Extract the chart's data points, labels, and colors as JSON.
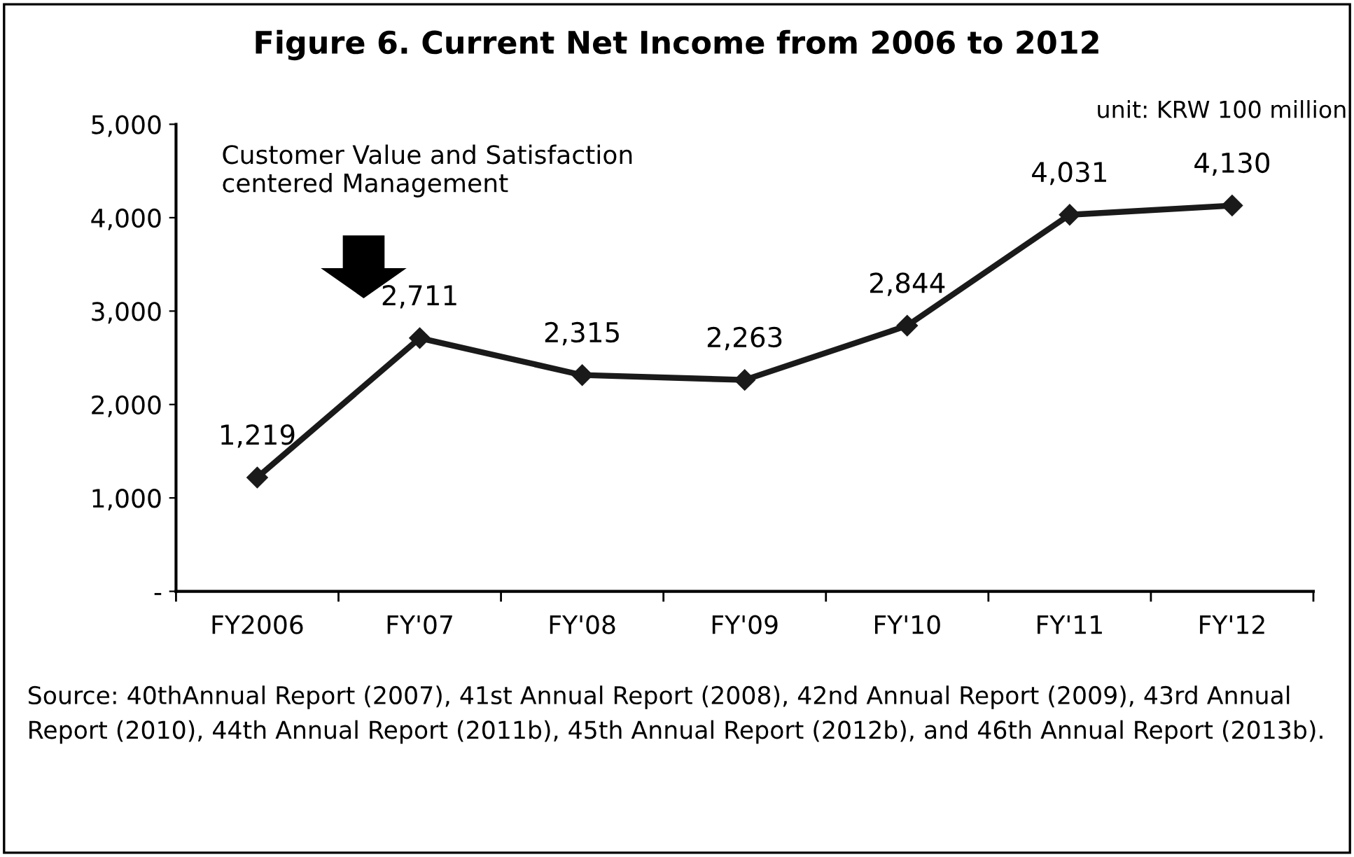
{
  "chart_data": {
    "type": "line",
    "title": "Figure 6. Current Net Income from 2006 to 2012",
    "categories": [
      "FY2006",
      "FY'07",
      "FY'08",
      "FY'09",
      "FY'10",
      "FY'11",
      "FY'12"
    ],
    "series": [
      {
        "color": "#1a1a1a",
        "values": [
          1219,
          2711,
          2315,
          2263,
          2844,
          4031,
          4130
        ]
      }
    ],
    "ylim": [
      0,
      5000
    ],
    "yticks": [
      {
        "value": 0,
        "label": "-"
      },
      {
        "value": 1000,
        "label": "1,000"
      },
      {
        "value": 2000,
        "label": "2,000"
      },
      {
        "value": 3000,
        "label": "3,000"
      },
      {
        "value": 4000,
        "label": "4,000"
      },
      {
        "value": 5000,
        "label": "5,000"
      }
    ],
    "value_labels": [
      "1,219",
      "2,711",
      "2,315",
      "2,263",
      "2,844",
      "4,031",
      "4,130"
    ],
    "marker": "diamond",
    "line_style": "solid",
    "grid": false,
    "legend": false,
    "annotations": [
      "unit: KRW 100 million",
      "Customer Value and Satisfaction\ncentered Management",
      "Source: 40thAnnual Report (2007), 41st Annual Report (2008), 42nd Annual Report (2009), 43rd Annual Report (2010), 44th Annual Report (2011b), 45th Annual Report (2012b), and 46th Annual Report (2013b)."
    ]
  }
}
